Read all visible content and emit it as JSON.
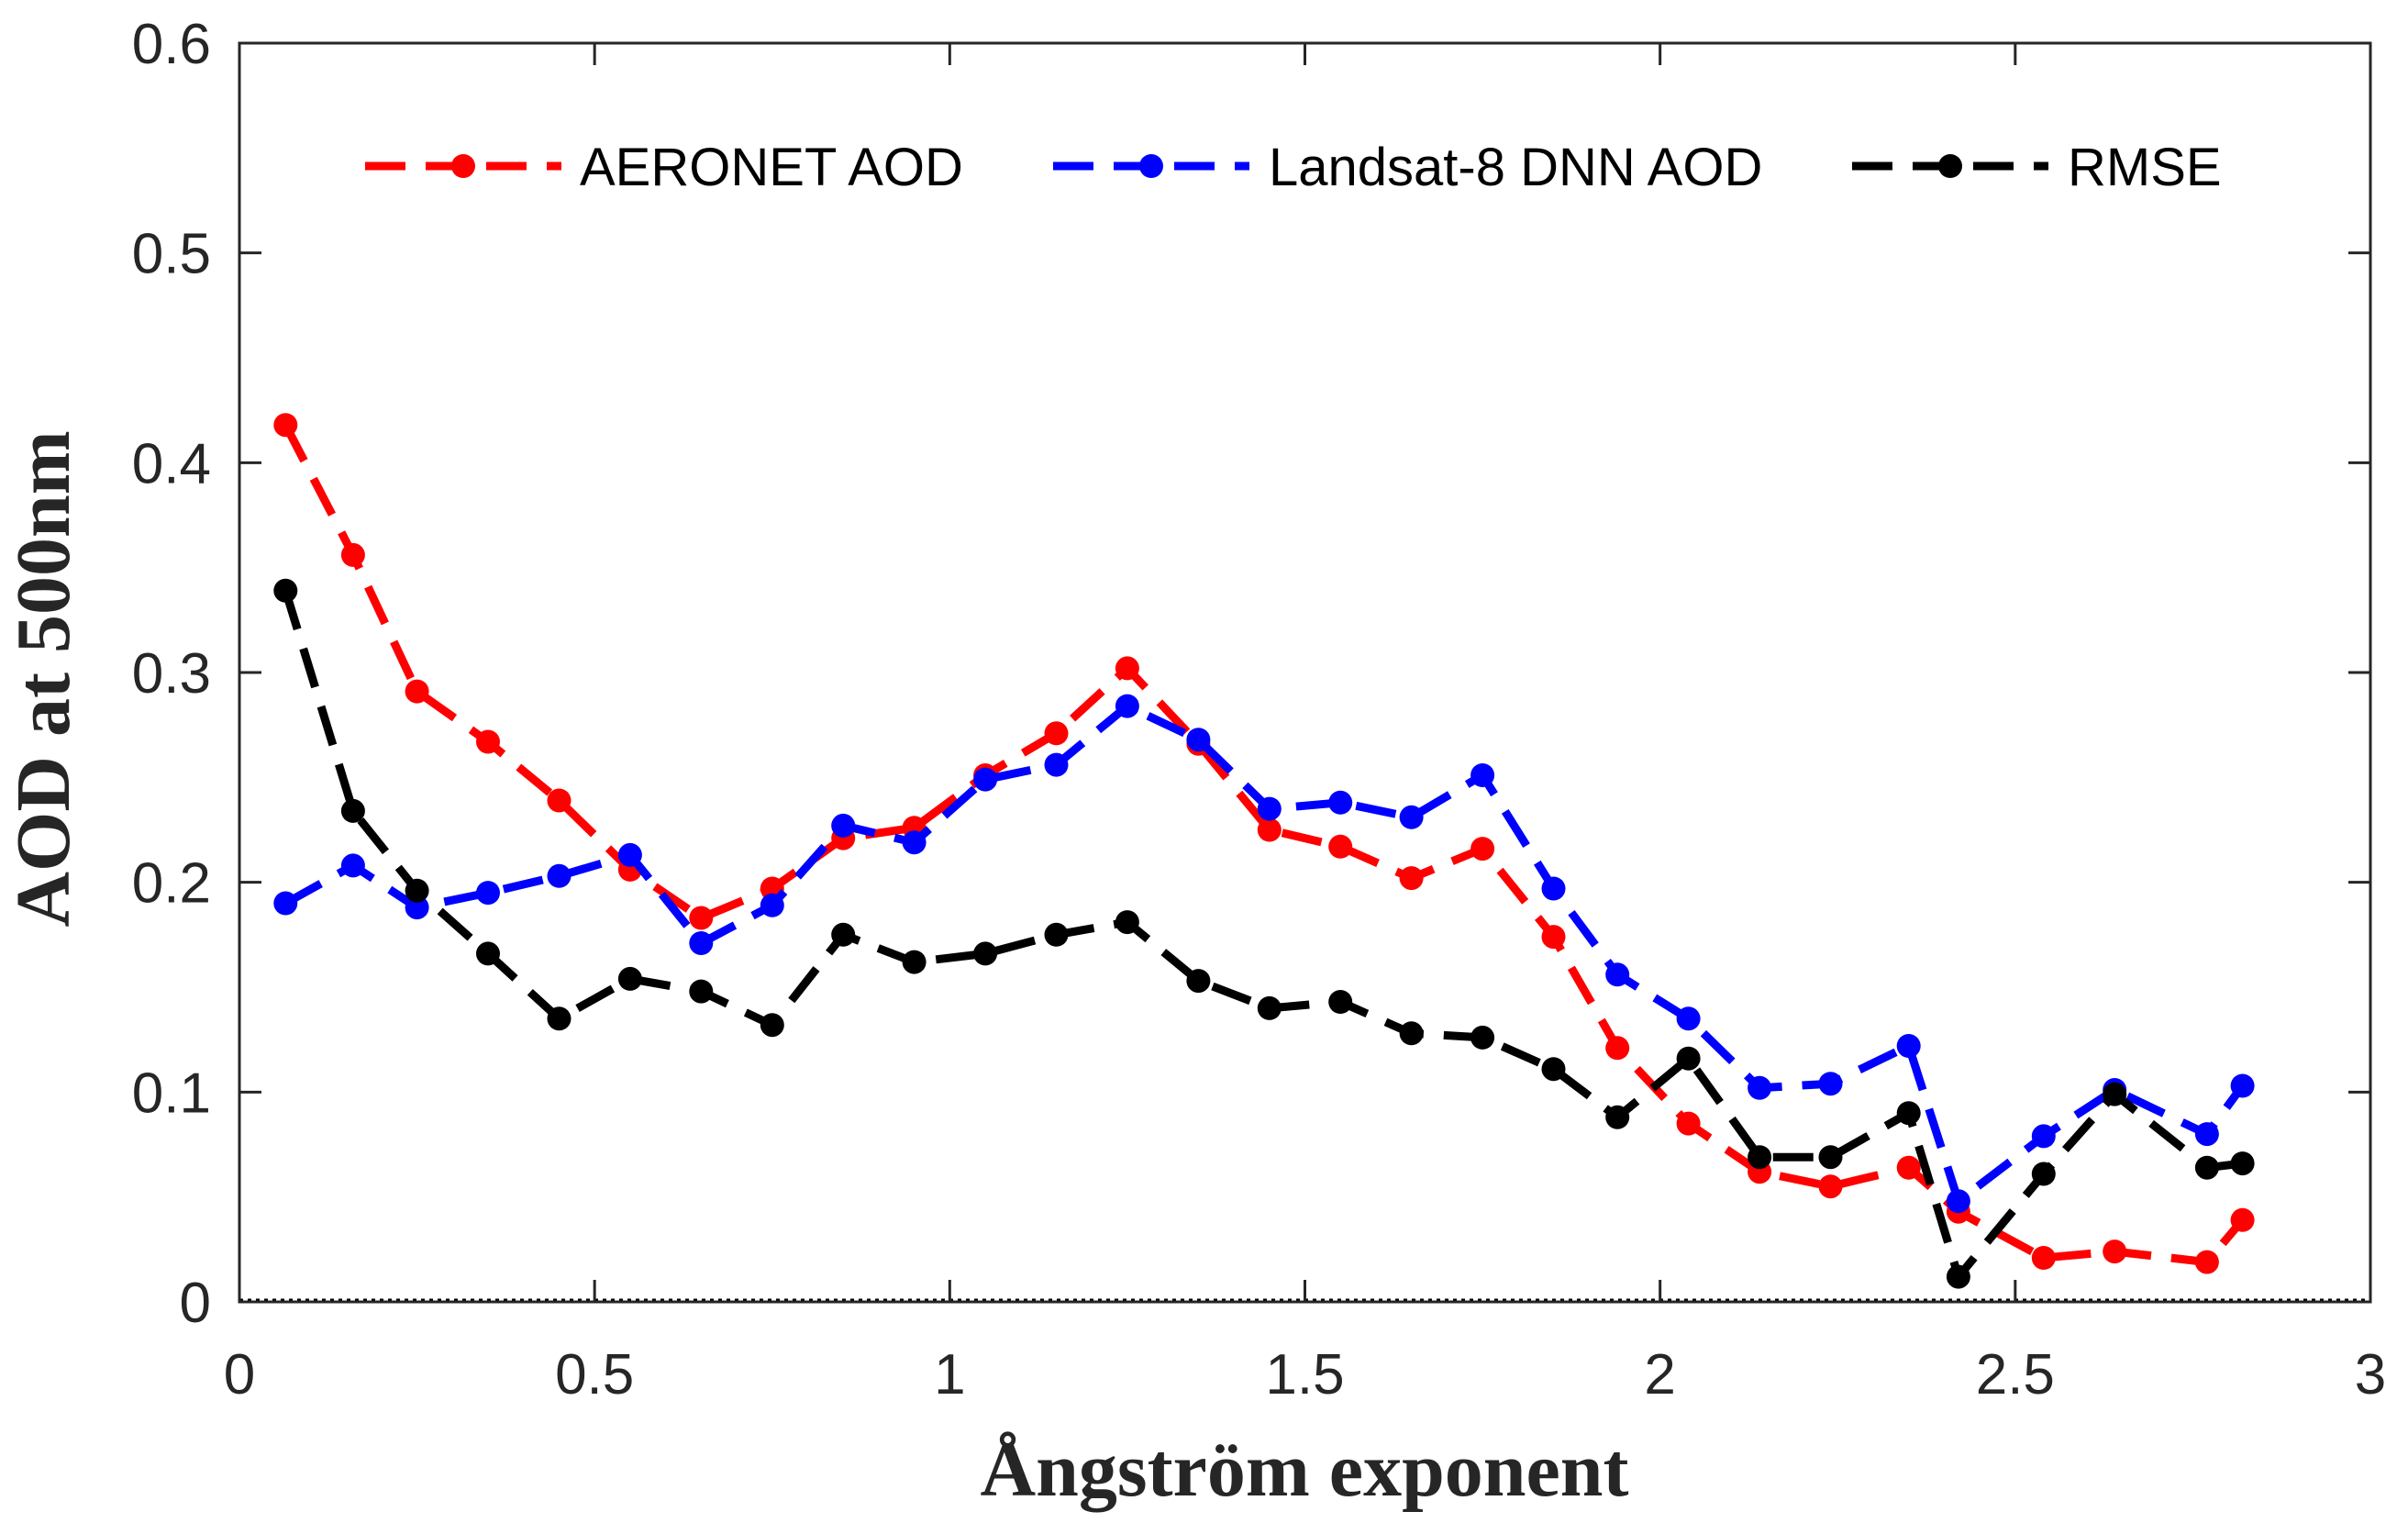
{
  "chart_data": {
    "type": "line",
    "title": "",
    "xlabel": "Ångström exponent",
    "ylabel": "AOD at 500nm",
    "xlim": [
      0,
      3
    ],
    "ylim": [
      0,
      0.6
    ],
    "xticks": [
      0,
      0.5,
      1,
      1.5,
      2,
      2.5,
      3
    ],
    "xtick_labels": [
      "0",
      "0.5",
      "1",
      "1.5",
      "2",
      "2.5",
      "3"
    ],
    "yticks": [
      0,
      0.1,
      0.2,
      0.3,
      0.4,
      0.5,
      0.6
    ],
    "ytick_labels": [
      "0",
      "0.1",
      "0.2",
      "0.3",
      "0.4",
      "0.5",
      "0.6"
    ],
    "grid": false,
    "legend_position": "top",
    "series": [
      {
        "name": "AERONET AOD",
        "color": "#ff0000",
        "line_style": "dashed",
        "marker": "circle",
        "x": [
          0.065,
          0.16,
          0.25,
          0.35,
          0.45,
          0.55,
          0.65,
          0.75,
          0.85,
          0.95,
          1.05,
          1.15,
          1.25,
          1.35,
          1.45,
          1.55,
          1.65,
          1.75,
          1.85,
          1.94,
          2.04,
          2.14,
          2.24,
          2.35,
          2.42,
          2.54,
          2.64,
          2.77,
          2.82
        ],
        "y": [
          0.418,
          0.356,
          0.291,
          0.267,
          0.239,
          0.206,
          0.183,
          0.197,
          0.221,
          0.226,
          0.251,
          0.271,
          0.302,
          0.266,
          0.225,
          0.217,
          0.202,
          0.216,
          0.174,
          0.121,
          0.085,
          0.062,
          0.055,
          0.064,
          0.043,
          0.021,
          0.024,
          0.019,
          0.039
        ]
      },
      {
        "name": "Landsat-8 DNN AOD",
        "color": "#0000ff",
        "line_style": "dashed",
        "marker": "circle",
        "x": [
          0.065,
          0.16,
          0.25,
          0.35,
          0.45,
          0.55,
          0.65,
          0.75,
          0.85,
          0.95,
          1.05,
          1.15,
          1.25,
          1.35,
          1.45,
          1.55,
          1.65,
          1.75,
          1.85,
          1.94,
          2.04,
          2.14,
          2.24,
          2.35,
          2.42,
          2.54,
          2.64,
          2.77,
          2.82
        ],
        "y": [
          0.19,
          0.208,
          0.188,
          0.195,
          0.203,
          0.213,
          0.171,
          0.189,
          0.227,
          0.219,
          0.249,
          0.256,
          0.284,
          0.268,
          0.235,
          0.238,
          0.231,
          0.251,
          0.197,
          0.156,
          0.135,
          0.102,
          0.104,
          0.122,
          0.048,
          0.079,
          0.101,
          0.08,
          0.103
        ]
      },
      {
        "name": "RMSE",
        "color": "#000000",
        "line_style": "dashed",
        "marker": "circle",
        "x": [
          0.065,
          0.16,
          0.25,
          0.35,
          0.45,
          0.55,
          0.65,
          0.75,
          0.85,
          0.95,
          1.05,
          1.15,
          1.25,
          1.35,
          1.45,
          1.55,
          1.65,
          1.75,
          1.85,
          1.94,
          2.04,
          2.14,
          2.24,
          2.35,
          2.42,
          2.54,
          2.64,
          2.77,
          2.82
        ],
        "y": [
          0.339,
          0.234,
          0.196,
          0.166,
          0.135,
          0.154,
          0.148,
          0.132,
          0.175,
          0.162,
          0.166,
          0.175,
          0.181,
          0.153,
          0.14,
          0.143,
          0.128,
          0.126,
          0.111,
          0.088,
          0.116,
          0.069,
          0.069,
          0.09,
          0.012,
          0.061,
          0.099,
          0.064,
          0.066
        ]
      }
    ]
  }
}
